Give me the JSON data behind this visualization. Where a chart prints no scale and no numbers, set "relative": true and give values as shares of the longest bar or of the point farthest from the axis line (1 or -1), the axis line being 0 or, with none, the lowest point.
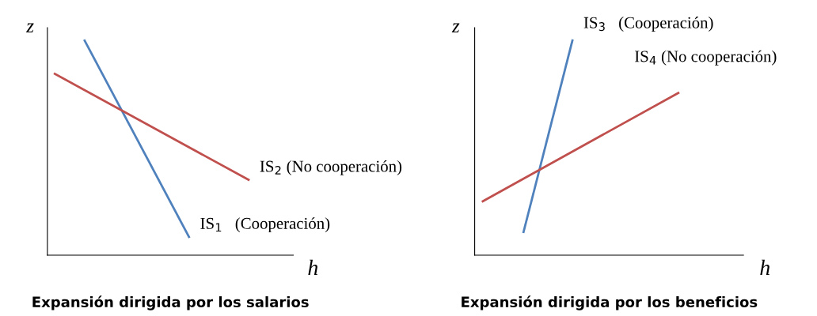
{
  "chart_data": [
    {
      "type": "line",
      "title": "Expansión dirigida por los salarios",
      "xlabel": "h",
      "ylabel": "z",
      "relative": true,
      "categories": [
        null,
        null,
        null,
        null,
        null,
        null,
        null,
        null,
        null,
        null,
        null,
        null,
        null,
        null,
        null,
        null,
        null,
        null,
        null,
        null,
        null,
        null,
        null,
        null,
        null,
        null,
        null,
        null,
        null,
        null,
        null,
        null
      ],
      "series": [
        {
          "name": "IS$_{1}$   (Cooperación)",
          "color": "#4f81bd",
          "values": [
            null,
            null,
            null,
            null,
            1,
            null,
            null,
            null,
            null,
            null,
            null,
            null,
            null,
            null,
            null,
            null,
            null,
            null,
            0.085,
            null,
            null,
            null,
            null,
            null,
            null,
            null,
            null,
            null,
            null,
            null,
            null,
            null
          ]
        },
        {
          "name": "IS$_{2}$ (No cooperación)",
          "color": "#c0504d",
          "values": [
            0.845,
            null,
            null,
            null,
            null,
            null,
            null,
            null,
            null,
            null,
            null,
            null,
            null,
            null,
            null,
            null,
            null,
            null,
            null,
            null,
            null,
            null,
            null,
            null,
            null,
            null,
            0.351,
            null,
            null,
            null,
            null,
            null
          ]
        }
      ]
    },
    {
      "type": "line",
      "title": "Expansión dirigida por los beneficios",
      "xlabel": "h",
      "ylabel": "z",
      "relative": true,
      "categories": [
        null,
        null,
        null,
        null,
        null,
        null,
        null,
        null,
        null,
        null,
        null,
        null,
        null,
        null,
        null,
        null,
        null,
        null,
        null,
        null,
        null,
        null,
        null,
        null,
        null,
        null,
        null,
        null,
        null,
        null,
        null,
        null
      ],
      "series": [
        {
          "name": "IS$_{3}$   (Cooperación)",
          "color": "#4f81bd",
          "values": [
            null,
            null,
            null,
            null,
            null,
            0.108,
            null,
            null,
            null,
            null,
            null,
            1,
            null,
            null,
            null,
            null,
            null,
            null,
            null,
            null,
            null,
            null,
            null,
            null,
            null,
            null,
            null,
            null,
            null,
            null,
            null,
            null
          ]
        },
        {
          "name": "IS$_{4}$ (No cooperación)",
          "color": "#c0504d",
          "values": [
            0.251,
            null,
            null,
            null,
            null,
            null,
            null,
            null,
            null,
            null,
            null,
            null,
            null,
            null,
            null,
            null,
            null,
            null,
            null,
            null,
            null,
            null,
            null,
            null,
            0.756,
            null,
            null,
            null,
            null,
            null,
            null,
            null
          ]
        }
      ]
    }
  ]
}
